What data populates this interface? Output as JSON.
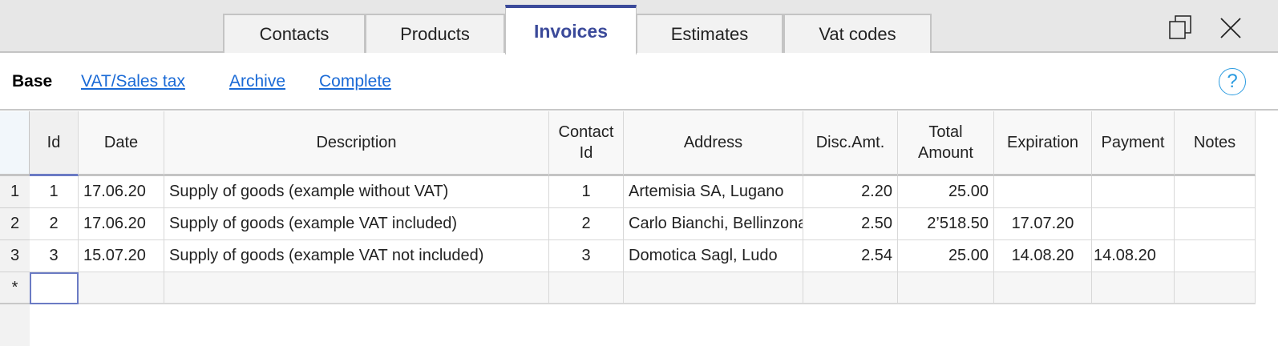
{
  "tabs": [
    {
      "label": "Contacts"
    },
    {
      "label": "Products"
    },
    {
      "label": "Invoices",
      "active": true
    },
    {
      "label": "Estimates"
    },
    {
      "label": "Vat codes"
    }
  ],
  "window": {
    "restore_icon": "restore-window-icon",
    "close_icon": "close-icon"
  },
  "toolbar": {
    "current": "Base",
    "links": [
      "VAT/Sales tax",
      "Archive",
      "Complete"
    ],
    "help_icon": "?"
  },
  "colors": {
    "accent": "#3b4a9a",
    "link": "#1a6ad6",
    "help": "#2a9be0"
  },
  "table": {
    "columns": [
      "Id",
      "Date",
      "Description",
      "Contact\nId",
      "Address",
      "Disc.Amt.",
      "Total\nAmount",
      "Expiration",
      "Payment",
      "Notes"
    ],
    "rows": [
      {
        "num": "1",
        "cells": [
          "1",
          "17.06.20",
          "Supply of goods (example without VAT)",
          "1",
          "Artemisia SA, Lugano",
          "2.20",
          "25.00",
          "",
          "",
          ""
        ]
      },
      {
        "num": "2",
        "cells": [
          "2",
          "17.06.20",
          "Supply of goods (example VAT included)",
          "2",
          "Carlo Bianchi, Bellinzona",
          "2.50",
          "2’518.50",
          "17.07.20",
          "",
          ""
        ]
      },
      {
        "num": "3",
        "cells": [
          "3",
          "15.07.20",
          "Supply of goods (example VAT not included)",
          "3",
          "Domotica Sagl, Ludo",
          "2.54",
          "25.00",
          "14.08.20",
          "14.08.20",
          ""
        ]
      }
    ],
    "new_row_marker": "*"
  }
}
